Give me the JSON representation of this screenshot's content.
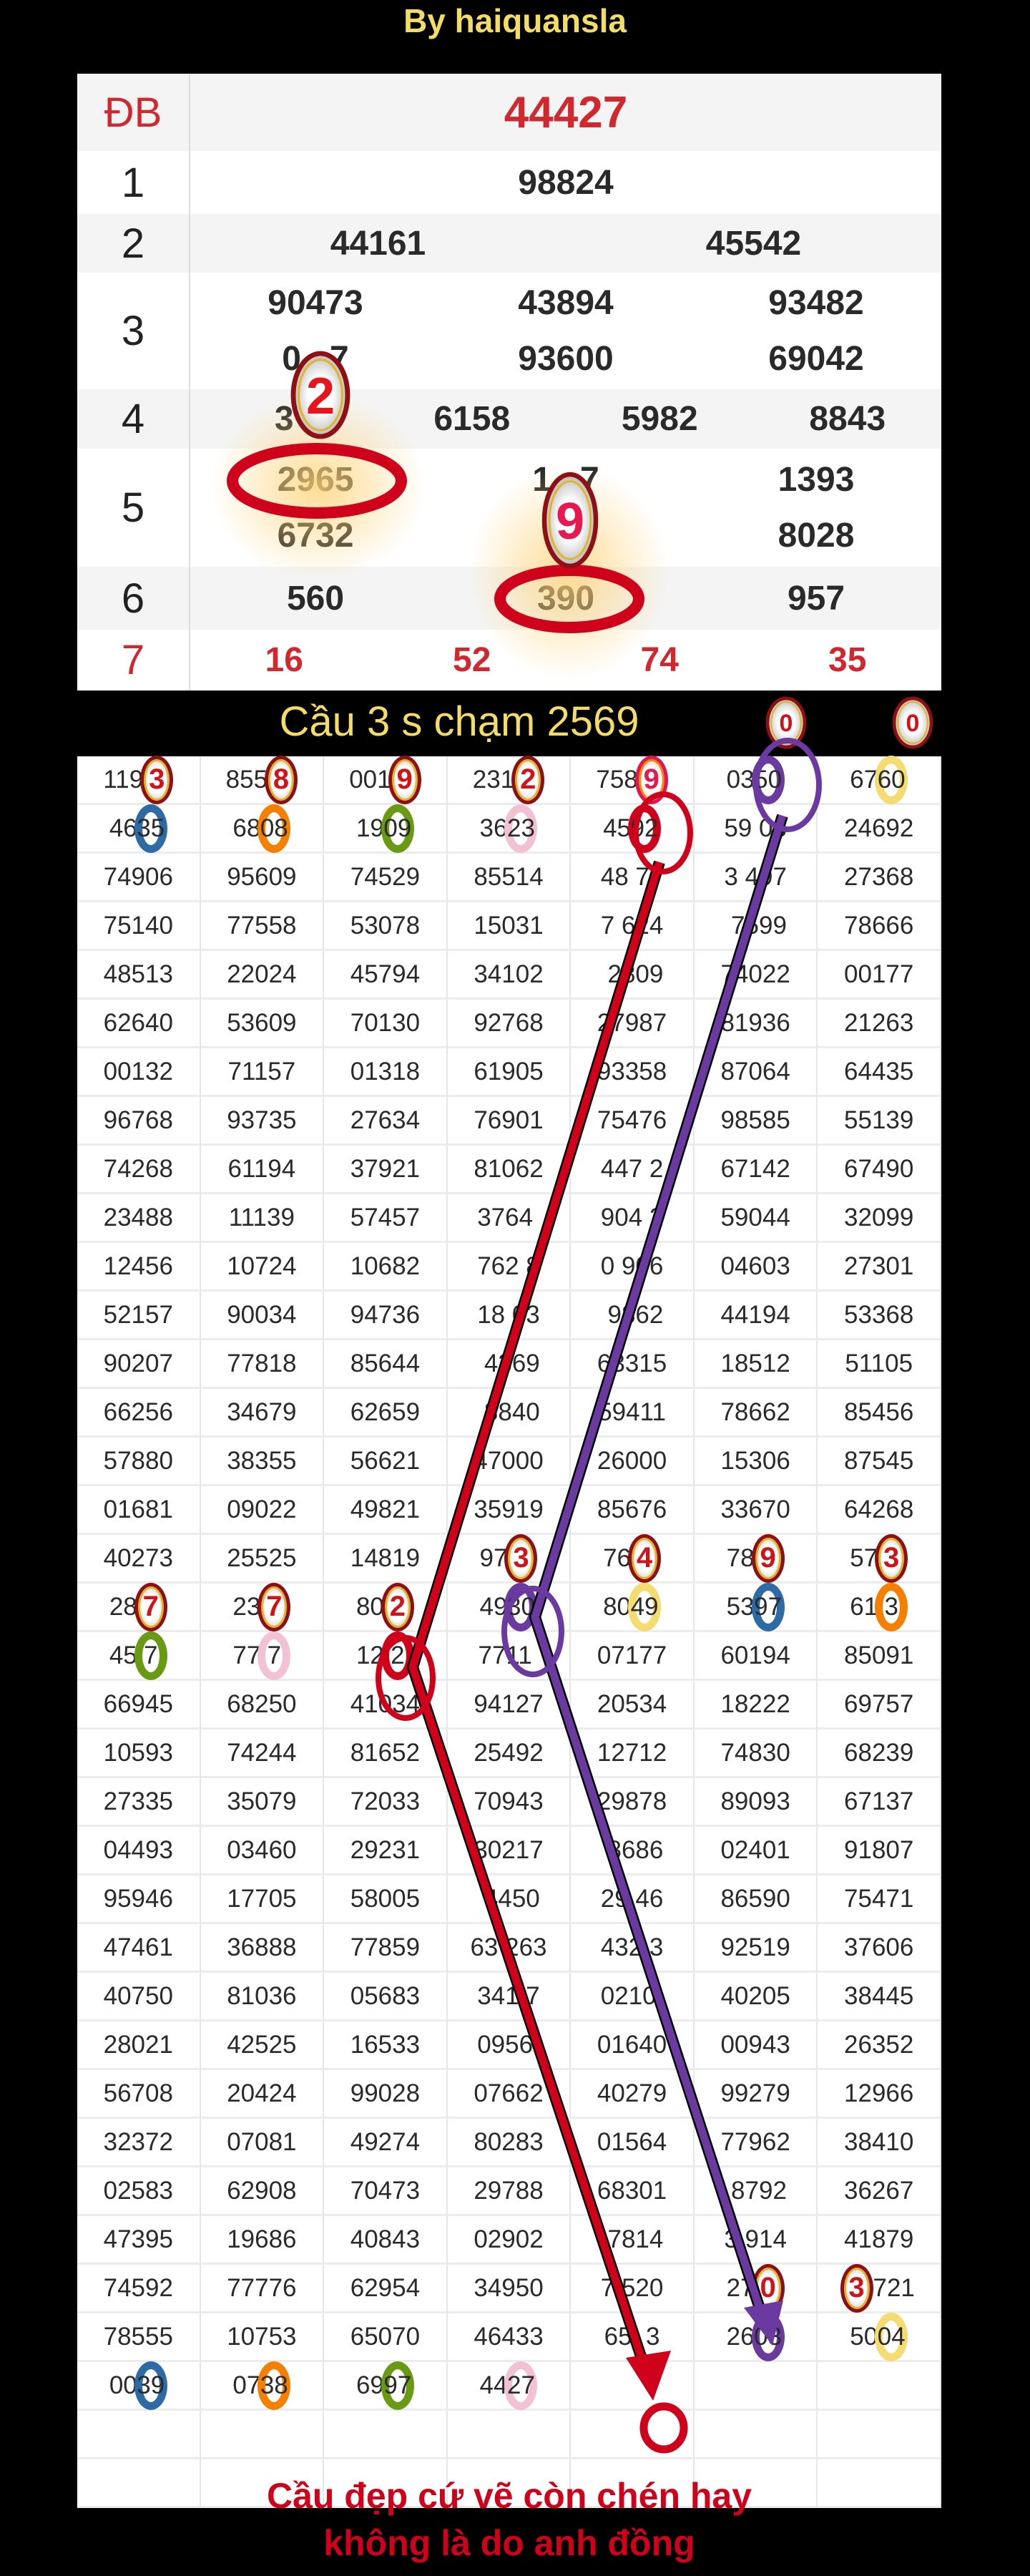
{
  "title": "By haiquansla",
  "prize_table": [
    {
      "label": "ĐB",
      "values": [
        "44427"
      ],
      "red": true,
      "cols": 1
    },
    {
      "label": "1",
      "values": [
        "98824"
      ],
      "cols": 1
    },
    {
      "label": "2",
      "values": [
        "44161",
        "45542"
      ],
      "cols": 2
    },
    {
      "label": "3",
      "values": [
        "90473",
        "43894",
        "93482",
        "0   7",
        "93600",
        "69042"
      ],
      "cols": 3
    },
    {
      "label": "4",
      "values": [
        "3",
        "6158",
        "5982",
        "8843"
      ],
      "cols": 4
    },
    {
      "label": "5",
      "values": [
        "2965",
        "1   7",
        "1393",
        "6732",
        "",
        "8028"
      ],
      "cols": 3
    },
    {
      "label": "6",
      "values": [
        "560",
        "390",
        "957"
      ],
      "cols": 3
    },
    {
      "label": "7",
      "values": [
        "16",
        "52",
        "74",
        "35"
      ],
      "cols": 4,
      "red": true
    }
  ],
  "highlights": {
    "badge_top": "2",
    "badge_mid": "9"
  },
  "heading": "Cầu 3 s chạm 2569",
  "heading_badges": [
    "0",
    "0"
  ],
  "grid_rows": [
    [
      {
        "t": "119",
        "m": "3",
        "k": "badge"
      },
      {
        "t": "855",
        "m": "8",
        "k": "badge"
      },
      {
        "t": "001",
        "m": "9",
        "k": "badge"
      },
      {
        "t": "231",
        "m": "2",
        "k": "badge"
      },
      {
        "t": "758",
        "m": "9",
        "k": "badge-pink"
      },
      {
        "t": "03",
        "m": "50",
        "k": "ring purple"
      },
      {
        "t": "67",
        "m": "60",
        "k": "ring yellow"
      }
    ],
    [
      {
        "t": "46",
        "m": "35",
        "k": "ring blue"
      },
      {
        "t": "68",
        "m": "08",
        "k": "ring orange"
      },
      {
        "t": "19",
        "m": "09",
        "k": "ring green"
      },
      {
        "t": "36",
        "m": "23",
        "k": "ring pink"
      },
      {
        "t": "45",
        "m": "92",
        "k": "ring red"
      },
      "59 08",
      "24692"
    ],
    [
      "74906",
      "95609",
      "74529",
      "85514",
      "48 77",
      "3 497",
      "27368"
    ],
    [
      "75140",
      "77558",
      "53078",
      "15031",
      "7 624",
      " 7599",
      "78666"
    ],
    [
      "48513",
      "22024",
      "45794",
      "34102",
      " 2809",
      "74022",
      "00177"
    ],
    [
      "62640",
      "53609",
      "70130",
      "92768",
      "27987",
      "81936",
      "21263"
    ],
    [
      "00132",
      "71157",
      "01318",
      "61905",
      "93358",
      "87064",
      "64435"
    ],
    [
      "96768",
      "93735",
      "27634",
      "76901",
      "75476",
      "98585",
      "55139"
    ],
    [
      "74268",
      "61194",
      "37921",
      "81062",
      "447 2",
      "67142",
      "67490"
    ],
    [
      "23488",
      "11139",
      "57457",
      "3764 ",
      "904 2",
      "59044",
      "32099"
    ],
    [
      "12456",
      "10724",
      "10682",
      "762 8",
      "0 906",
      "04603",
      "27301"
    ],
    [
      "52157",
      "90034",
      "94736",
      "18 03",
      " 9862",
      "44194",
      "53368"
    ],
    [
      "90207",
      "77818",
      "85644",
      " 4369",
      "63315",
      "18512",
      "51105"
    ],
    [
      "66256",
      "34679",
      "62659",
      " 8840",
      "59411",
      "78662",
      "85456"
    ],
    [
      "57880",
      "38355",
      "56621",
      "47000",
      "26000",
      "15306",
      "87545"
    ],
    [
      "01681",
      "09022",
      "49821",
      "35919",
      "85676",
      "33670",
      "64268"
    ],
    [
      "40273",
      "25525",
      "14819",
      {
        "t": "97",
        "m": "3",
        "k": "badge"
      },
      {
        "t": "76",
        "m": "4",
        "k": "badge"
      },
      {
        "t": "78",
        "m": "9",
        "k": "badge"
      },
      {
        "t": "57",
        "m": "3",
        "k": "badge"
      }
    ],
    [
      {
        "t": "28",
        "m": "7",
        "k": "badge"
      },
      {
        "t": "23",
        "m": "7",
        "k": "badge"
      },
      {
        "t": "80",
        "m": "2",
        "k": "badge"
      },
      {
        "t": "49",
        "m": "30",
        "k": "ring purple"
      },
      {
        "t": "80",
        "m": "49",
        "k": "ring yellow"
      },
      {
        "t": "53",
        "m": "97",
        "k": "ring blue"
      },
      {
        "t": "61",
        "m": "3",
        "k": "ring orange"
      }
    ],
    [
      {
        "t": "45",
        "m": "7",
        "k": "ring green"
      },
      {
        "t": "77",
        "m": "7",
        "k": "ring pink"
      },
      {
        "t": "12",
        "m": "2",
        "k": "ring red"
      },
      "7711 ",
      "07177",
      "60194",
      "85091"
    ],
    [
      "66945",
      "68250",
      "41034",
      "94127",
      "20534",
      "18222",
      "69757"
    ],
    [
      "10593",
      "74244",
      "81652",
      "25492",
      "12712",
      "74830",
      "68239"
    ],
    [
      "27335",
      "35079",
      "72033",
      "70943",
      "29878",
      "89093",
      "67137"
    ],
    [
      "04493",
      "03460",
      "29231",
      "30217",
      " 8686",
      "02401",
      "91807"
    ],
    [
      "95946",
      "17705",
      "58005",
      " 4450",
      "29 46",
      "86590",
      "75471"
    ],
    [
      "47461",
      "36888",
      "77859",
      "63 263",
      "432 3",
      "92519",
      "37606"
    ],
    [
      "40750",
      "81036",
      "05683",
      "341 7",
      "0210 ",
      "40205",
      "38445"
    ],
    [
      "28021",
      "42525",
      "16533",
      "0956 ",
      "01640",
      "00943",
      "26352"
    ],
    [
      "56708",
      "20424",
      "99028",
      "07662",
      "40279",
      "99279",
      "12966"
    ],
    [
      "32372",
      "07081",
      "49274",
      "80283",
      "01564",
      "77962",
      "38410"
    ],
    [
      "02583",
      "62908",
      "70473",
      "29788",
      "68301",
      " 8792",
      "36267"
    ],
    [
      "47395",
      "19686",
      "40843",
      "02902",
      " 7814",
      "3 914",
      "41879"
    ],
    [
      "74592",
      "77776",
      "62954",
      "34950",
      "7 520",
      {
        "t": "27",
        "m": "0",
        "k": "badge"
      },
      {
        "t": "721",
        "m": "3",
        "k": "badge",
        "before": true
      }
    ],
    [
      "78555",
      "10753",
      "65070",
      "46433",
      "65  3",
      {
        "t": "26",
        "m": "03",
        "k": "ring purple"
      },
      {
        "t": "50",
        "m": "04",
        "k": "ring yellow"
      }
    ],
    [
      {
        "t": "00",
        "m": "39",
        "k": "ring blue"
      },
      {
        "t": "07",
        "m": "38",
        "k": "ring orange"
      },
      {
        "t": "69",
        "m": "97",
        "k": "ring green"
      },
      {
        "t": "44",
        "m": "27",
        "k": "ring pink"
      },
      "",
      "",
      ""
    ],
    [
      "",
      "",
      "",
      "",
      "",
      "",
      ""
    ],
    [
      "",
      "",
      "",
      "",
      "",
      "",
      ""
    ]
  ],
  "footer": {
    "line1": "Cầu đẹp cứ vẽ còn chén hay",
    "line2": "không là do anh đồng"
  },
  "colors": {
    "title": "#f3dc64",
    "red_line": "#d0021b",
    "purple_line": "#6a3aa0",
    "accent_red": "#d0282e"
  }
}
